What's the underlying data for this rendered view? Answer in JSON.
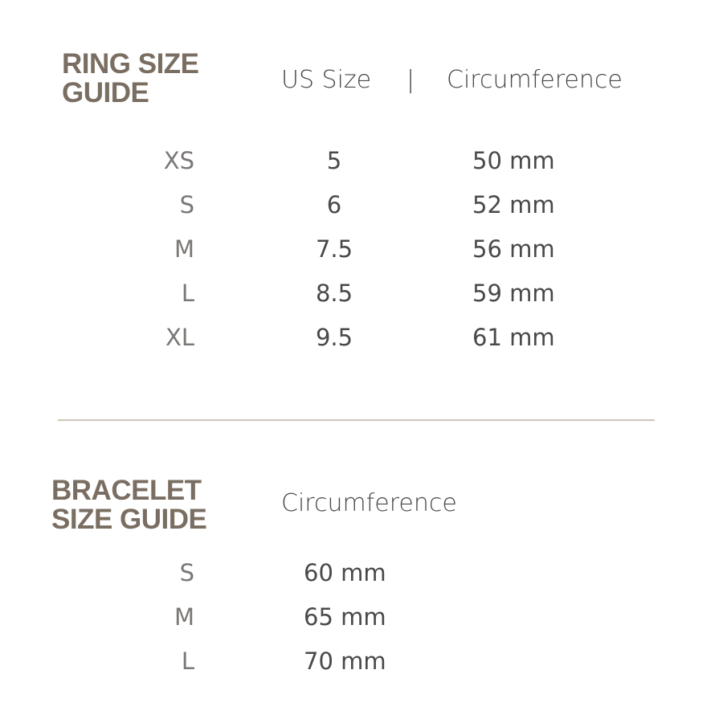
{
  "ring": {
    "title_line1": "RING SIZE",
    "title_line2": "GUIDE",
    "header_us": "US Size",
    "header_sep": "|",
    "header_circ": "Circumference",
    "rows": [
      {
        "size": "XS",
        "us": "5",
        "circ": "50 mm"
      },
      {
        "size": "S",
        "us": "6",
        "circ": "52 mm"
      },
      {
        "size": "M",
        "us": "7.5",
        "circ": "56 mm"
      },
      {
        "size": "L",
        "us": "8.5",
        "circ": "59 mm"
      },
      {
        "size": "XL",
        "us": "9.5",
        "circ": "61 mm"
      }
    ]
  },
  "bracelet": {
    "title_line1": "BRACELET",
    "title_line2": "SIZE GUIDE",
    "header_circ": "Circumference",
    "rows": [
      {
        "size": "S",
        "circ": "60 mm"
      },
      {
        "size": "M",
        "circ": "65 mm"
      },
      {
        "size": "L",
        "circ": "70 mm"
      }
    ]
  },
  "colors": {
    "title": "#7a6e62",
    "text": "#4a4848",
    "divider": "#cfc5b8"
  }
}
